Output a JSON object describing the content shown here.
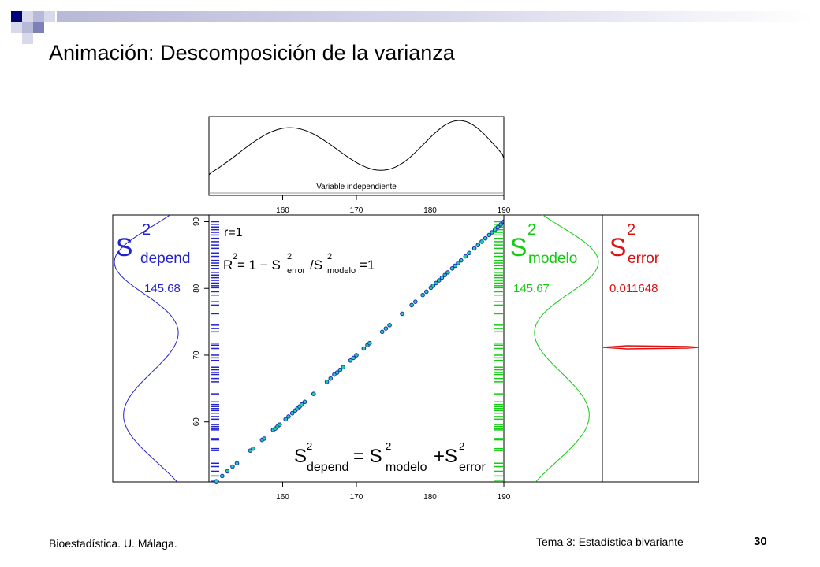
{
  "slide": {
    "title": "Animación: Descomposición de la varianza",
    "footer_left": "Bioestadística. U. Málaga.",
    "footer_center": "Tema 3: Estadística bivariante",
    "page_number": "30",
    "accent_colors": [
      "#00007a",
      "#7e80b8",
      "#b8b9d8",
      "#d9d9ec"
    ]
  },
  "chart_data": {
    "type": "scatter",
    "panel_top_label": "Variable independiente",
    "x_ticks": [
      160,
      170,
      180,
      190
    ],
    "y_ticks": [
      60,
      70,
      80,
      90
    ],
    "xlim": [
      150,
      190
    ],
    "ylim": [
      51,
      91
    ],
    "r_label": "r=1",
    "r2_formula": {
      "prefix": "R",
      "sup": "2",
      "eq1": " = 1 − S",
      "sup2": "2",
      "sub_error": "error",
      "slash": "/S",
      "sup3": "2",
      "sub_modelo": "modelo",
      "eq2": "=1"
    },
    "bottom_formula": {
      "s1": "S",
      "sub1": "depend",
      "eq": "= S",
      "sub2": "modelo",
      "plus": "+S",
      "sub3": "error",
      "sup": "2"
    },
    "variances": {
      "depend": {
        "symbol": "S",
        "sub": "depend",
        "sup": "2",
        "value": "145.68",
        "color": "#2222cc"
      },
      "modelo": {
        "symbol": "S",
        "sub": "modelo",
        "sup": "2",
        "value": "145.67",
        "color": "#11cc11"
      },
      "error": {
        "symbol": "S",
        "sub": "error",
        "sup": "2",
        "value": "0.011648",
        "color": "#dd1111"
      }
    },
    "points": [
      [
        151.0,
        51.1
      ],
      [
        151.8,
        51.9
      ],
      [
        152.5,
        52.6
      ],
      [
        153.2,
        53.3
      ],
      [
        153.8,
        53.8
      ],
      [
        155.6,
        55.7
      ],
      [
        156.0,
        56.0
      ],
      [
        157.2,
        57.3
      ],
      [
        157.5,
        57.5
      ],
      [
        158.7,
        58.8
      ],
      [
        159.0,
        59.0
      ],
      [
        159.3,
        59.3
      ],
      [
        159.6,
        59.6
      ],
      [
        160.4,
        60.4
      ],
      [
        160.8,
        60.8
      ],
      [
        161.3,
        61.3
      ],
      [
        161.7,
        61.7
      ],
      [
        162.0,
        62.0
      ],
      [
        162.3,
        62.3
      ],
      [
        162.6,
        62.6
      ],
      [
        163.0,
        63.0
      ],
      [
        164.2,
        64.2
      ],
      [
        166.0,
        66.0
      ],
      [
        166.5,
        66.5
      ],
      [
        167.0,
        67.1
      ],
      [
        167.4,
        67.4
      ],
      [
        167.8,
        67.8
      ],
      [
        168.2,
        68.2
      ],
      [
        169.2,
        69.2
      ],
      [
        169.6,
        69.6
      ],
      [
        170.0,
        70.0
      ],
      [
        171.0,
        71.0
      ],
      [
        171.5,
        71.5
      ],
      [
        171.8,
        71.8
      ],
      [
        173.5,
        73.5
      ],
      [
        174.0,
        74.0
      ],
      [
        174.5,
        74.5
      ],
      [
        176.2,
        76.2
      ],
      [
        177.5,
        77.5
      ],
      [
        178.0,
        78.0
      ],
      [
        179.0,
        79.0
      ],
      [
        179.5,
        79.5
      ],
      [
        180.1,
        80.1
      ],
      [
        180.4,
        80.4
      ],
      [
        180.8,
        80.8
      ],
      [
        181.2,
        81.2
      ],
      [
        181.6,
        81.6
      ],
      [
        182.0,
        82.0
      ],
      [
        182.4,
        82.4
      ],
      [
        183.0,
        83.0
      ],
      [
        183.4,
        83.4
      ],
      [
        183.8,
        83.8
      ],
      [
        184.2,
        84.2
      ],
      [
        184.8,
        84.8
      ],
      [
        185.3,
        85.3
      ],
      [
        186.0,
        86.0
      ],
      [
        186.5,
        86.5
      ],
      [
        187.0,
        87.0
      ],
      [
        187.5,
        87.5
      ],
      [
        188.0,
        88.0
      ],
      [
        188.4,
        88.4
      ],
      [
        188.8,
        88.8
      ],
      [
        189.2,
        89.2
      ],
      [
        189.6,
        89.6
      ],
      [
        190.0,
        90.0
      ]
    ],
    "rug_depend": [
      90.0,
      89.6,
      89.2,
      88.8,
      88.4,
      88.0,
      87.5,
      87.0,
      86.5,
      86.0,
      85.3,
      84.8,
      84.2,
      83.8,
      83.4,
      83.0,
      82.4,
      82.0,
      81.6,
      81.2,
      80.8,
      80.4,
      80.1,
      79.5,
      79.0,
      78.0,
      77.5,
      76.2,
      74.5,
      74.0,
      73.5,
      71.8,
      71.5,
      71.0,
      70.0,
      69.6,
      69.2,
      68.2,
      67.8,
      67.4,
      67.1,
      66.5,
      66.0,
      64.2,
      63.0,
      62.6,
      62.3,
      62.0,
      61.7,
      61.3,
      60.8,
      60.4,
      59.6,
      59.3,
      59.0,
      58.8,
      57.5,
      57.3,
      56.0,
      55.7,
      53.8,
      53.3,
      52.6,
      51.9,
      51.1
    ],
    "series": [
      {
        "color": "#2222cc",
        "marker": "#1e8ccc"
      },
      {
        "color": "#11cc11"
      },
      {
        "color": "#dd1111"
      }
    ]
  }
}
